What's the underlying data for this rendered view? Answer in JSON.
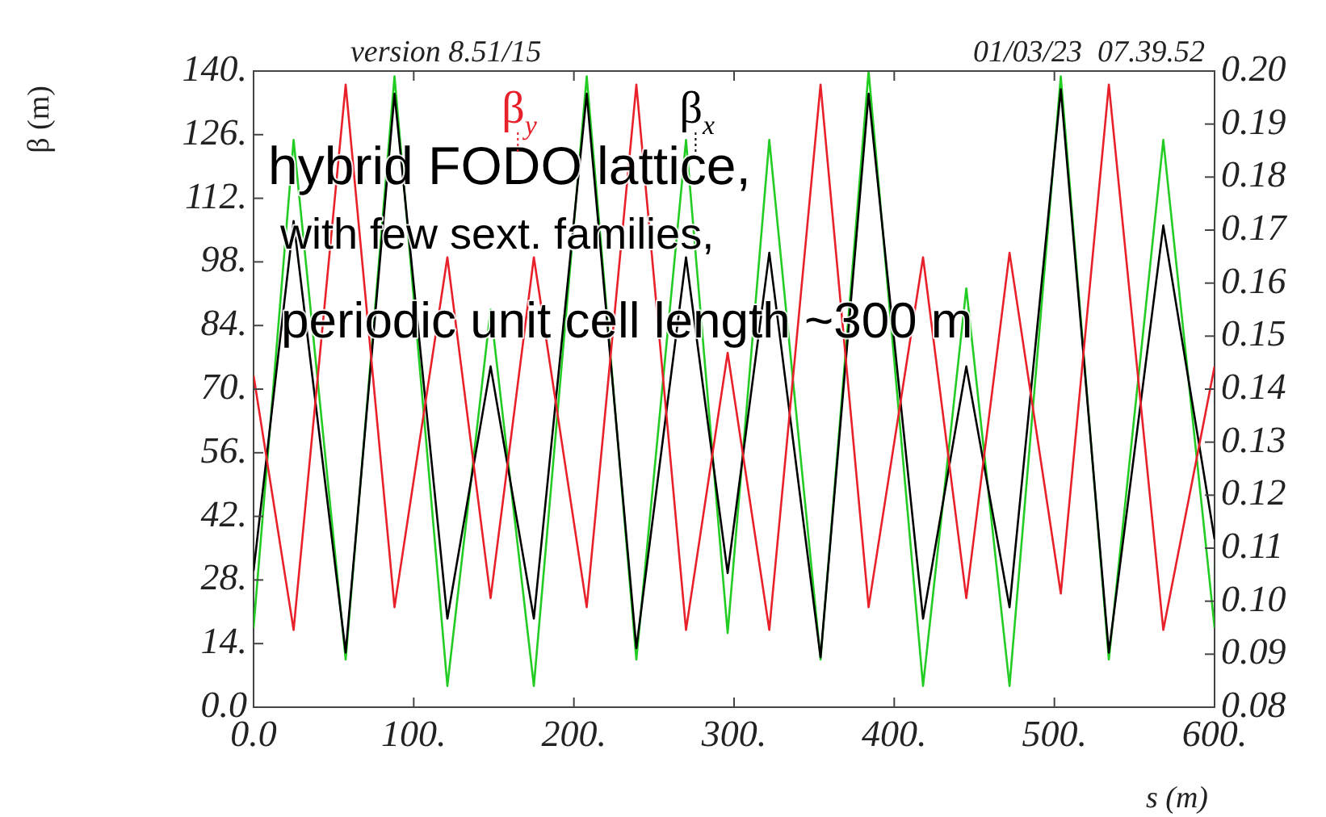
{
  "chart_data": {
    "type": "line",
    "xlabel": "s (m)",
    "ylabel": "β (m)",
    "grid": false,
    "legend": "top",
    "marker": "none",
    "line_style": "solid",
    "xlim": [
      0,
      600
    ],
    "xticks": [
      {
        "value": 0,
        "label": "0.0"
      },
      {
        "value": 100,
        "label": "100."
      },
      {
        "value": 200,
        "label": "200."
      },
      {
        "value": 300,
        "label": "300."
      },
      {
        "value": 400,
        "label": "400."
      },
      {
        "value": 500,
        "label": "500."
      },
      {
        "value": 600,
        "label": "600."
      }
    ],
    "ylim": [
      0,
      140
    ],
    "yticks": [
      {
        "value": 0,
        "label": "0.0"
      },
      {
        "value": 14,
        "label": "14."
      },
      {
        "value": 28,
        "label": "28."
      },
      {
        "value": 42,
        "label": "42."
      },
      {
        "value": 56,
        "label": "56."
      },
      {
        "value": 70,
        "label": "70."
      },
      {
        "value": 84,
        "label": "84."
      },
      {
        "value": 98,
        "label": "98."
      },
      {
        "value": 112,
        "label": "112."
      },
      {
        "value": 126,
        "label": "126."
      },
      {
        "value": 140,
        "label": "140."
      }
    ],
    "y2lim": [
      0.08,
      0.2
    ],
    "y2ticks": [
      {
        "value": 0.08,
        "label": "0.08"
      },
      {
        "value": 0.09,
        "label": "0.09"
      },
      {
        "value": 0.1,
        "label": "0.10"
      },
      {
        "value": 0.11,
        "label": "0.11"
      },
      {
        "value": 0.12,
        "label": "0.12"
      },
      {
        "value": 0.13,
        "label": "0.13"
      },
      {
        "value": 0.14,
        "label": "0.14"
      },
      {
        "value": 0.15,
        "label": "0.15"
      },
      {
        "value": 0.16,
        "label": "0.16"
      },
      {
        "value": 0.17,
        "label": "0.17"
      },
      {
        "value": 0.18,
        "label": "0.18"
      },
      {
        "value": 0.19,
        "label": "0.19"
      },
      {
        "value": 0.2,
        "label": "0.20"
      }
    ],
    "series": [
      {
        "name": "β$_{y}$",
        "color": "#e8202a",
        "x": [
          0,
          25,
          57.5,
          88,
          121,
          148,
          175,
          208,
          239,
          270,
          296,
          322,
          354,
          384,
          418,
          445,
          472,
          504,
          534,
          568,
          600
        ],
        "values": [
          73,
          17,
          137,
          22,
          99,
          24,
          99,
          22,
          137,
          17,
          78,
          17,
          137,
          22,
          99,
          24,
          100,
          25,
          137,
          17,
          75
        ]
      },
      {
        "name": "β$_{x}$",
        "color": "#000000",
        "x": [
          0,
          25,
          57.5,
          88,
          121,
          148,
          175,
          208,
          239,
          270,
          296,
          322,
          354,
          384,
          418,
          445,
          472,
          504,
          534,
          568,
          600
        ],
        "values": [
          30,
          107,
          12,
          135,
          19.5,
          75,
          19.5,
          135,
          13,
          99,
          29.5,
          100,
          11,
          135,
          19.5,
          75,
          22,
          136,
          12,
          106,
          37
        ]
      },
      {
        "color": "#22cc22",
        "axis": "y2",
        "x": [
          0,
          25,
          57.5,
          88,
          121,
          148,
          175,
          208,
          239,
          270,
          296,
          322,
          354,
          384,
          418,
          445,
          472,
          504,
          534,
          568,
          600
        ],
        "values": [
          0.095,
          0.187,
          0.089,
          0.199,
          0.084,
          0.155,
          0.084,
          0.199,
          0.089,
          0.187,
          0.094,
          0.187,
          0.089,
          0.2,
          0.084,
          0.159,
          0.084,
          0.199,
          0.089,
          0.187,
          0.095
        ]
      }
    ],
    "annotations": [
      "version 8.51/15",
      "01/03/23  07.39.52",
      "hybrid FODO lattice,",
      " with few sext. families,",
      "periodic unit cell length ~300 m"
    ]
  }
}
